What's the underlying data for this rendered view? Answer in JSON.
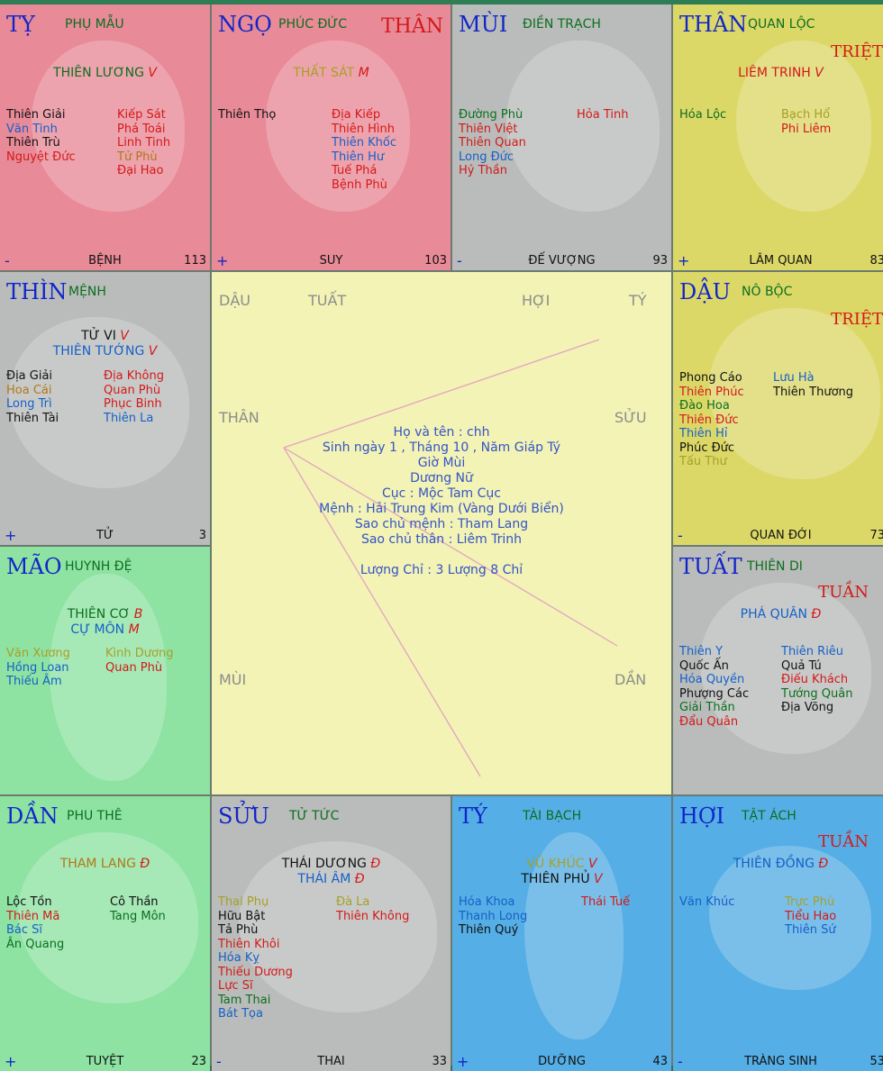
{
  "palaces": {
    "ty": {
      "branch": "TỴ",
      "house": "PHỤ MẪU",
      "main": [
        {
          "name": "THIÊN LƯƠNG",
          "q": "V"
        }
      ],
      "left": [
        "Thiên Giải",
        "Văn Tinh",
        "Thiên Trù",
        "Nguyệt Đức"
      ],
      "right": [
        "Kiếp Sát",
        "Phá Toái",
        "Linh Tinh",
        "Tử Phù",
        "Đại Hao"
      ],
      "sign": "-",
      "life": "BỆNH",
      "num": "113"
    },
    "ngo": {
      "branch": "NGỌ",
      "house": "PHÚC ĐỨC",
      "tag": "THÂN",
      "main": [
        {
          "name": "THẤT SÁT",
          "q": "M"
        }
      ],
      "left": [
        "Thiên Thọ"
      ],
      "right": [
        "Địa Kiếp",
        "Thiên Hình",
        "Thiên Khốc",
        "Thiên Hư",
        "Tuế Phá",
        "Bệnh Phù"
      ],
      "sign": "+",
      "life": "SUY",
      "num": "103"
    },
    "mui": {
      "branch": "MÙI",
      "house": "ĐIỀN TRẠCH",
      "left": [
        "Đường Phù",
        "Thiên Việt",
        "Thiên Quan",
        "Long Đức",
        "Hỷ Thần"
      ],
      "right": [
        "Hỏa Tinh"
      ],
      "sign": "-",
      "life": "ĐẾ VƯỢNG",
      "num": "93"
    },
    "than": {
      "branch": "THÂN",
      "house": "QUAN LỘC",
      "tag": "TRIỆT",
      "main": [
        {
          "name": "LIÊM TRINH",
          "q": "V"
        }
      ],
      "left": [
        "Hóa Lộc"
      ],
      "right": [
        "Bạch Hổ",
        "Phi Liêm"
      ],
      "sign": "+",
      "life": "LÂM QUAN",
      "num": "83"
    },
    "thin": {
      "branch": "THÌN",
      "house": "MỆNH",
      "main": [
        {
          "name": "TỬ VI",
          "q": "V"
        },
        {
          "name": "THIÊN TƯỚNG",
          "q": "V"
        }
      ],
      "left": [
        "Địa Giải",
        "Hoa Cái",
        "Long Trì",
        "Thiên Tài"
      ],
      "right": [
        "Địa Không",
        "Quan Phù",
        "Phục Binh",
        "Thiên La"
      ],
      "sign": "+",
      "life": "TỬ",
      "num": "3"
    },
    "dau": {
      "branch": "DẬU",
      "house": "NÔ BỘC",
      "tag": "TRIỆT",
      "left": [
        "Phong Cáo",
        "Thiên Phúc",
        "Đào Hoa",
        "Thiên Đức",
        "Thiên Hỉ",
        "Phúc Đức",
        "Tấu Thư"
      ],
      "right": [
        "Lưu Hà",
        "Thiên Thương"
      ],
      "sign": "-",
      "life": "QUAN ĐỚI",
      "num": "73"
    },
    "mao": {
      "branch": "MÃO",
      "house": "HUYNH ĐỆ",
      "main": [
        {
          "name": "THIÊN CƠ",
          "q": "B"
        },
        {
          "name": "CỰ MÔN",
          "q": "M"
        }
      ],
      "left": [
        "Văn Xương",
        "Hồng Loan",
        "Thiếu Âm"
      ],
      "right": [
        "Kình Dương",
        "Quan Phù"
      ]
    },
    "tuat": {
      "branch": "TUẤT",
      "house": "THIÊN DI",
      "tag": "TUẦN",
      "main": [
        {
          "name": "PHÁ QUÂN",
          "q": "Đ"
        }
      ],
      "left": [
        "Thiên Y",
        "Quốc Ấn",
        "Hóa Quyền",
        "Phượng Các",
        "Giải Thần",
        "Đẩu Quân"
      ],
      "right": [
        "Thiên Riêu",
        "Quả Tú",
        "Điếu Khách",
        "Tướng Quân",
        "Địa Võng"
      ]
    },
    "dan": {
      "branch": "DẦN",
      "house": "PHU THÊ",
      "main": [
        {
          "name": "THAM LANG",
          "q": "Đ"
        }
      ],
      "left": [
        "Lộc Tồn",
        "Thiên Mã",
        "Bác Sĩ",
        "Ân Quang"
      ],
      "right": [
        "Cô Thần",
        "Tang Môn"
      ],
      "sign": "+",
      "life": "TUYỆT",
      "num": "23"
    },
    "suu": {
      "branch": "SỬU",
      "house": "TỬ TỨC",
      "main": [
        {
          "name": "THÁI DƯƠNG",
          "q": "Đ"
        },
        {
          "name": "THÁI ÂM",
          "q": "Đ"
        }
      ],
      "left": [
        "Thai Phụ",
        "Hữu Bật",
        "Tả Phù",
        "Thiên Khôi",
        "Hóa Kỵ",
        "Thiếu Dương",
        "Lực Sĩ",
        "Tam Thai",
        "Bát Tọa"
      ],
      "right": [
        "Đà La",
        "Thiên Không"
      ],
      "sign": "-",
      "life": "THAI",
      "num": "33"
    },
    "tyy": {
      "branch": "TÝ",
      "house": "TÀI BẠCH",
      "main": [
        {
          "name": "VŨ KHÚC",
          "q": "V"
        },
        {
          "name": "THIÊN PHỦ",
          "q": "V"
        }
      ],
      "left": [
        "Hóa Khoa",
        "Thanh Long",
        "Thiên Quý"
      ],
      "right": [
        "Thái Tuế"
      ],
      "sign": "+",
      "life": "DƯỠNG",
      "num": "43"
    },
    "hoi": {
      "branch": "HỢI",
      "house": "TẬT ÁCH",
      "tag": "TUẦN",
      "main": [
        {
          "name": "THIÊN ĐỒNG",
          "q": "Đ"
        }
      ],
      "left": [
        "Văn Khúc"
      ],
      "right": [
        "Trực Phù",
        "Tiểu Hao",
        "Thiên Sứ"
      ],
      "sign": "-",
      "life": "TRÀNG SINH",
      "num": "53"
    }
  },
  "center": {
    "corner_labels": [
      "DẬU",
      "TUẤT",
      "HỢI",
      "TÝ",
      "THÂN",
      "SỬU",
      "MÙI",
      "DẦN"
    ],
    "info": [
      "Họ và tên : chh",
      "Sinh ngày 1 , Tháng 10 , Năm Giáp Tý",
      "Giờ Mùi",
      "Dương Nữ",
      "Cục : Mộc Tam Cục",
      "Mệnh : Hải Trung Kim (Vàng Dưới Biển)",
      "Sao chủ mệnh : Tham Lang",
      "Sao chủ thân : Liêm Trinh",
      "",
      "Lượng Chỉ : 3 Lượng 8 Chỉ"
    ]
  }
}
